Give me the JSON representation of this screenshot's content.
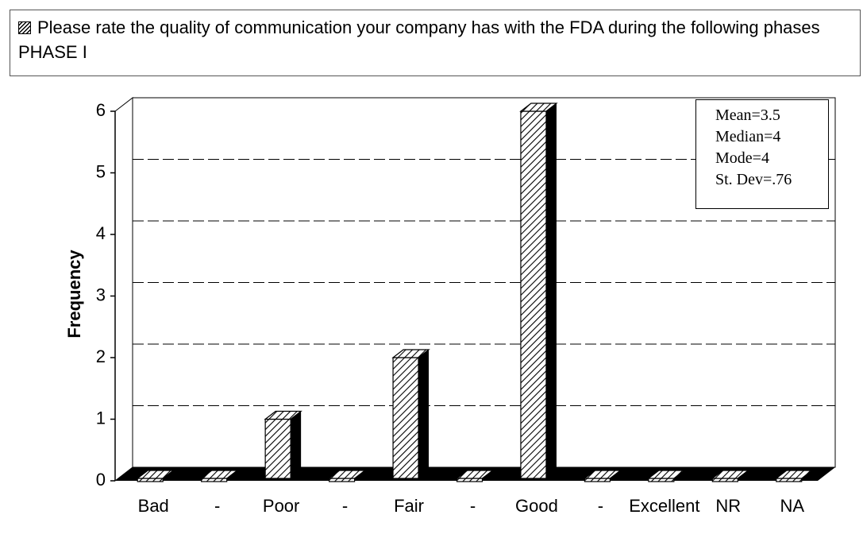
{
  "chart_data": {
    "type": "bar3d",
    "categories": [
      "Bad",
      "-",
      "Poor",
      "-",
      "Fair",
      "-",
      "Good",
      "-",
      "Excellent",
      "NR",
      "NA"
    ],
    "series": [
      {
        "name": "Please rate the quality of communication your company has with the FDA during the following phases PHASE I",
        "color": "#ffffff",
        "values": [
          0,
          0,
          1,
          0,
          2,
          0,
          6,
          0,
          0,
          0,
          0
        ]
      }
    ],
    "y_label": "Frequency",
    "ylim": [
      0,
      6
    ],
    "yticks": [
      0,
      1,
      2,
      3,
      4,
      5,
      6
    ],
    "grid": true,
    "annotations": [
      "Mean=3.5",
      "Median=4",
      "Mode=4",
      "St. Dev=.76"
    ]
  }
}
